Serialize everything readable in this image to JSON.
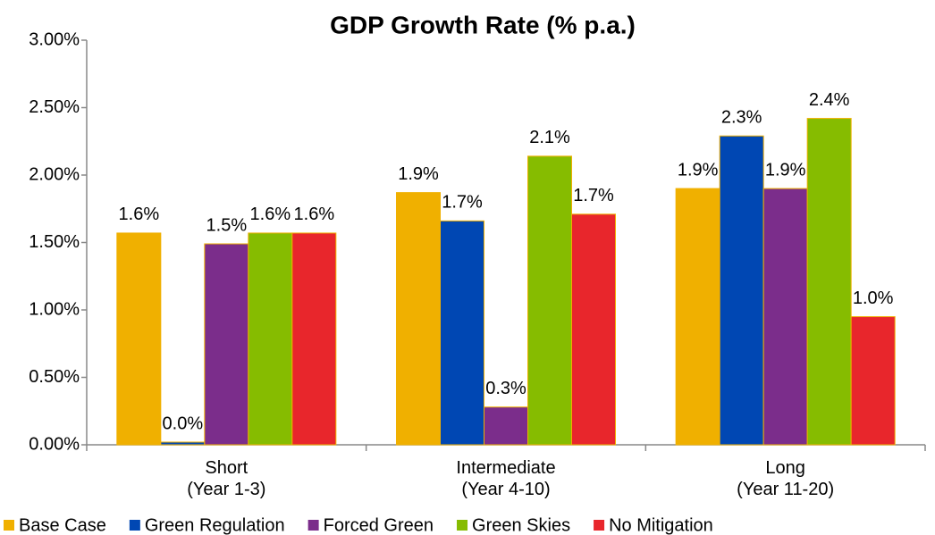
{
  "chart_data": {
    "type": "bar",
    "title": "GDP Growth Rate (% p.a.)",
    "categories": [
      [
        "Short",
        "(Year 1-3)"
      ],
      [
        "Intermediate",
        "(Year 4-10)"
      ],
      [
        "Long",
        "(Year 11-20)"
      ]
    ],
    "series": [
      {
        "name": "Base Case",
        "color": "#f0b000",
        "values": [
          1.57,
          1.87,
          1.9
        ],
        "value_labels": [
          "1.6%",
          "1.9%",
          "1.9%"
        ]
      },
      {
        "name": "Green Regulation",
        "color": "#0047b3",
        "values": [
          0.02,
          1.66,
          2.29
        ],
        "value_labels": [
          "0.0%",
          "1.7%",
          "2.3%"
        ]
      },
      {
        "name": "Forced Green",
        "color": "#7b2d8b",
        "values": [
          1.49,
          0.28,
          1.9
        ],
        "value_labels": [
          "1.5%",
          "0.3%",
          "1.9%"
        ]
      },
      {
        "name": "Green Skies",
        "color": "#86bc00",
        "values": [
          1.57,
          2.14,
          2.42
        ],
        "value_labels": [
          "1.6%",
          "2.1%",
          "2.4%"
        ]
      },
      {
        "name": "No Mitigation",
        "color": "#e8262c",
        "values": [
          1.57,
          1.71,
          0.95
        ],
        "value_labels": [
          "1.6%",
          "1.7%",
          "1.0%"
        ]
      }
    ],
    "ylim": [
      0,
      3
    ],
    "yticks": [
      {
        "value": 0,
        "label": "0.00%"
      },
      {
        "value": 0.5,
        "label": "0.50%"
      },
      {
        "value": 1,
        "label": "1.00%"
      },
      {
        "value": 1.5,
        "label": "1.50%"
      },
      {
        "value": 2,
        "label": "2.00%"
      },
      {
        "value": 2.5,
        "label": "2.50%"
      },
      {
        "value": 3,
        "label": "3.00%"
      }
    ],
    "grid": false,
    "legend": "bottom"
  }
}
